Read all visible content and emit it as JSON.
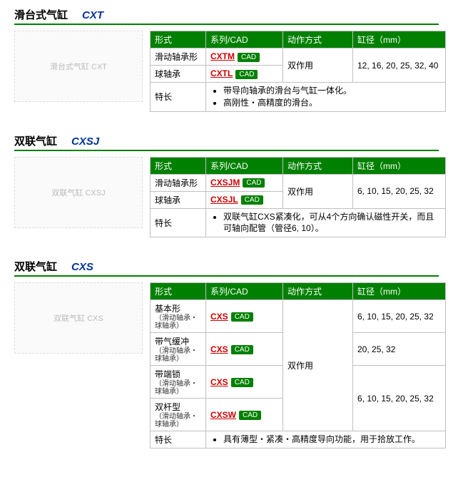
{
  "headers": {
    "type": "形式",
    "series": "系列/CAD",
    "action": "动作方式",
    "bore": "缸径（mm）",
    "features": "特长"
  },
  "cad_label": "CAD",
  "products": [
    {
      "title": "滑台式气缸",
      "code": "CXT",
      "image_alt": "滑台式气缸 CXT",
      "rows": [
        {
          "type_main": "滑动轴承形",
          "series": "CXTM",
          "action": "双作用",
          "bore": "12, 16, 20, 25, 32, 40"
        },
        {
          "type_main": "球轴承",
          "series": "CXTL"
        }
      ],
      "features": [
        "带导向轴承的滑台与气缸一体化。",
        "高刚性・高精度的滑台。"
      ]
    },
    {
      "title": "双联气缸",
      "code": "CXSJ",
      "image_alt": "双联气缸 CXSJ",
      "rows": [
        {
          "type_main": "滑动轴承形",
          "series": "CXSJM",
          "action": "双作用",
          "bore": "6, 10, 15, 20, 25, 32"
        },
        {
          "type_main": "球轴承",
          "series": "CXSJL"
        }
      ],
      "features": [
        "双联气缸CXS紧凑化，可从4个方向确认磁性开关，而且可轴向配管（管径6, 10）。"
      ]
    },
    {
      "title": "双联气缸",
      "code": "CXS",
      "image_alt": "双联气缸 CXS",
      "rows": [
        {
          "type_main": "基本形",
          "type_sub": "（滑动轴承・球轴承）",
          "series": "CXS",
          "action": "双作用",
          "bore": "6, 10, 15, 20, 25, 32"
        },
        {
          "type_main": "带气缓冲",
          "type_sub": "（滑动轴承・球轴承）",
          "series": "CXS",
          "bore": "20, 25, 32"
        },
        {
          "type_main": "带端锁",
          "type_sub": "（滑动轴承・球轴承）",
          "series": "CXS",
          "bore": "6, 10, 15, 20, 25, 32",
          "bore_rowspan": 2
        },
        {
          "type_main": "双杆型",
          "type_sub": "（滑动轴承・球轴承）",
          "series": "CXSW"
        }
      ],
      "features": [
        "具有薄型・紧凑・高精度导向功能，用于拾放工作。"
      ]
    }
  ]
}
